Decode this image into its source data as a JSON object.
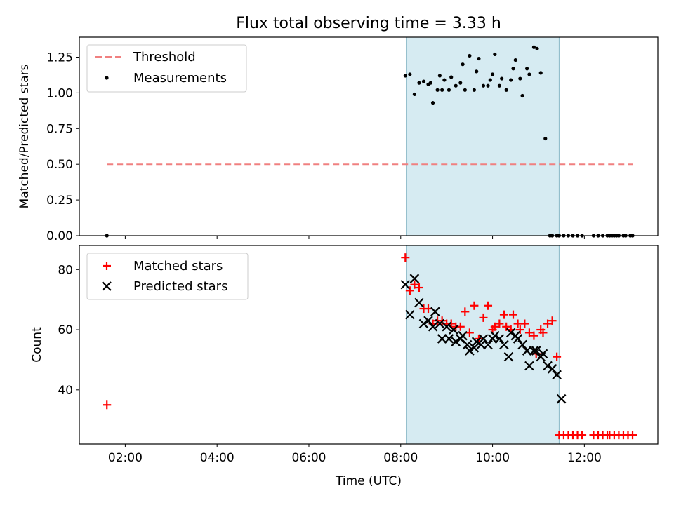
{
  "title": "Flux total observing time = 3.33 h",
  "chart_data": [
    {
      "type": "scatter",
      "panel": "top",
      "ylabel": "Matched/Predicted stars",
      "xlim": [
        1.0,
        13.6
      ],
      "ylim": [
        0,
        1.39
      ],
      "yticks": [
        0.0,
        0.25,
        0.5,
        0.75,
        1.0,
        1.25
      ],
      "ytick_labels": [
        "0.00",
        "0.25",
        "0.50",
        "0.75",
        "1.00",
        "1.25"
      ],
      "shaded_span": [
        8.12,
        11.45
      ],
      "threshold": {
        "name": "Threshold",
        "y": 0.5,
        "x": [
          1.6,
          13.05
        ],
        "color": "#f08080"
      },
      "legend": {
        "placement": "upper-left",
        "entries": [
          "Threshold",
          "Measurements"
        ]
      },
      "series": [
        {
          "name": "Measurements",
          "color": "#000000",
          "x": [
            1.6,
            8.1,
            8.2,
            8.3,
            8.4,
            8.5,
            8.6,
            8.65,
            8.7,
            8.8,
            8.85,
            8.9,
            8.95,
            9.05,
            9.1,
            9.2,
            9.3,
            9.35,
            9.4,
            9.5,
            9.6,
            9.65,
            9.7,
            9.8,
            9.9,
            9.95,
            10.0,
            10.05,
            10.15,
            10.2,
            10.3,
            10.4,
            10.45,
            10.5,
            10.6,
            10.65,
            10.75,
            10.8,
            10.9,
            10.97,
            11.05,
            11.15,
            11.25,
            11.3,
            11.4,
            11.45,
            11.55,
            11.65,
            11.75,
            11.85,
            11.95,
            12.2,
            12.3,
            12.4,
            12.5,
            12.55,
            12.6,
            12.65,
            12.7,
            12.75,
            12.85,
            12.9,
            13.0,
            13.05
          ],
          "y": [
            0.0,
            1.12,
            1.13,
            0.99,
            1.07,
            1.08,
            1.06,
            1.07,
            0.93,
            1.02,
            1.12,
            1.02,
            1.09,
            1.02,
            1.11,
            1.05,
            1.07,
            1.2,
            1.02,
            1.26,
            1.02,
            1.15,
            1.24,
            1.05,
            1.05,
            1.09,
            1.13,
            1.27,
            1.05,
            1.1,
            1.02,
            1.09,
            1.17,
            1.23,
            1.1,
            0.98,
            1.17,
            1.13,
            1.32,
            1.31,
            1.14,
            0.68,
            0.0,
            0.0,
            0.0,
            0.0,
            0.0,
            0.0,
            0.0,
            0.0,
            0.0,
            0.0,
            0.0,
            0.0,
            0.0,
            0.0,
            0.0,
            0.0,
            0.0,
            0.0,
            0.0,
            0.0,
            0.0,
            0.0
          ]
        }
      ]
    },
    {
      "type": "scatter",
      "panel": "bottom",
      "xlabel": "Time (UTC)",
      "ylabel": "Count",
      "xlim": [
        1.0,
        13.6
      ],
      "ylim": [
        22,
        88
      ],
      "yticks": [
        40,
        60,
        80
      ],
      "xticks": [
        2,
        4,
        6,
        8,
        10,
        12
      ],
      "xtick_labels": [
        "02:00",
        "04:00",
        "06:00",
        "08:00",
        "10:00",
        "12:00"
      ],
      "shaded_span": [
        8.12,
        11.45
      ],
      "legend": {
        "placement": "upper-left",
        "entries": [
          "Matched stars",
          "Predicted stars"
        ]
      },
      "series": [
        {
          "name": "Matched stars",
          "marker": "plus",
          "color": "#ff0000",
          "x": [
            1.6,
            8.1,
            8.2,
            8.3,
            8.4,
            8.5,
            8.6,
            8.7,
            8.8,
            8.9,
            9.0,
            9.1,
            9.2,
            9.3,
            9.4,
            9.5,
            9.6,
            9.7,
            9.8,
            9.9,
            10.0,
            10.05,
            10.15,
            10.25,
            10.3,
            10.4,
            10.45,
            10.55,
            10.6,
            10.7,
            10.8,
            10.9,
            10.95,
            11.05,
            11.1,
            11.2,
            11.3,
            11.4,
            11.45,
            11.55,
            11.65,
            11.75,
            11.85,
            11.95,
            12.2,
            12.3,
            12.4,
            12.5,
            12.55,
            12.65,
            12.75,
            12.85,
            12.95,
            13.05
          ],
          "y": [
            35,
            84,
            73,
            75,
            74,
            67,
            67,
            62,
            63,
            63,
            62,
            62,
            61,
            61,
            66,
            59,
            68,
            57,
            64,
            68,
            60,
            61,
            62,
            65,
            61,
            60,
            65,
            62,
            60,
            62,
            59,
            58,
            52,
            60,
            59,
            62,
            63,
            51,
            25,
            25,
            25,
            25,
            25,
            25,
            25,
            25,
            25,
            25,
            25,
            25,
            25,
            25,
            25,
            25
          ]
        },
        {
          "name": "Predicted stars",
          "marker": "x",
          "color": "#000000",
          "x": [
            8.1,
            8.2,
            8.3,
            8.4,
            8.5,
            8.6,
            8.7,
            8.75,
            8.85,
            8.9,
            9.0,
            9.05,
            9.15,
            9.2,
            9.3,
            9.35,
            9.45,
            9.5,
            9.6,
            9.65,
            9.75,
            9.8,
            9.9,
            10.0,
            10.05,
            10.15,
            10.25,
            10.35,
            10.4,
            10.5,
            10.55,
            10.65,
            10.75,
            10.8,
            10.9,
            10.95,
            11.05,
            11.1,
            11.2,
            11.3,
            11.4,
            11.5
          ],
          "y": [
            75,
            65,
            77,
            69,
            62,
            63,
            61,
            66,
            62,
            57,
            61,
            57,
            60,
            56,
            57,
            58,
            55,
            53,
            54,
            56,
            55,
            57,
            55,
            57,
            58,
            57,
            55,
            51,
            59,
            58,
            57,
            55,
            53,
            48,
            53,
            53,
            51,
            52,
            48,
            47,
            45,
            37
          ]
        }
      ]
    }
  ]
}
